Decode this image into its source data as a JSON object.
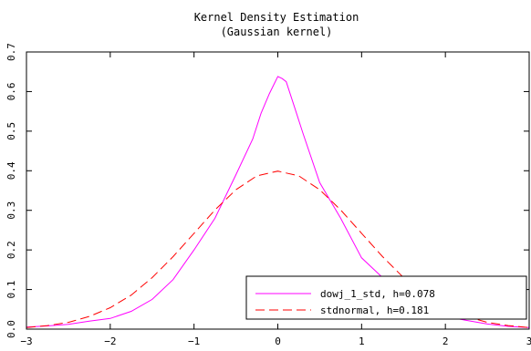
{
  "chart_data": {
    "type": "line",
    "title": "Kernel Density Estimation",
    "subtitle": "(Gaussian kernel)",
    "xlabel": "",
    "ylabel": "",
    "xlim": [
      -3,
      3
    ],
    "ylim": [
      0,
      0.7
    ],
    "xticks": [
      -3,
      -2,
      -1,
      0,
      1,
      2,
      3
    ],
    "yticks": [
      0.0,
      0.1,
      0.2,
      0.3,
      0.4,
      0.5,
      0.6,
      0.7
    ],
    "xtick_labels": [
      "−3",
      "−2",
      "−1",
      "0",
      "1",
      "2",
      "3"
    ],
    "ytick_labels": [
      "0.0",
      "0.1",
      "0.2",
      "0.3",
      "0.4",
      "0.5",
      "0.6",
      "0.7"
    ],
    "grid": false,
    "legend_position": "bottom-right",
    "series": [
      {
        "name": "dowj_1_std, h=0.078",
        "color": "#ff00ff",
        "dash": "solid",
        "x": [
          -3.0,
          -2.75,
          -2.5,
          -2.25,
          -2.0,
          -1.75,
          -1.5,
          -1.25,
          -1.0,
          -0.75,
          -0.5,
          -0.3,
          -0.2,
          -0.1,
          0.0,
          0.05,
          0.1,
          0.2,
          0.3,
          0.5,
          0.75,
          1.0,
          1.25,
          1.5,
          1.75,
          2.0,
          2.25,
          2.5,
          2.75,
          3.0
        ],
        "y": [
          0.005,
          0.008,
          0.012,
          0.02,
          0.027,
          0.045,
          0.075,
          0.125,
          0.2,
          0.28,
          0.39,
          0.48,
          0.545,
          0.595,
          0.638,
          0.633,
          0.625,
          0.56,
          0.495,
          0.37,
          0.28,
          0.18,
          0.13,
          0.08,
          0.055,
          0.032,
          0.022,
          0.013,
          0.007,
          0.004
        ]
      },
      {
        "name": "stdnormal, h=0.181",
        "color": "#ff0000",
        "dash": "dashed",
        "x": [
          -3.0,
          -2.75,
          -2.5,
          -2.25,
          -2.0,
          -1.75,
          -1.5,
          -1.25,
          -1.0,
          -0.75,
          -0.5,
          -0.25,
          0.0,
          0.25,
          0.5,
          0.75,
          1.0,
          1.25,
          1.5,
          1.75,
          2.0,
          2.25,
          2.5,
          2.75,
          3.0
        ],
        "y": [
          0.004,
          0.009,
          0.017,
          0.032,
          0.054,
          0.086,
          0.13,
          0.183,
          0.242,
          0.301,
          0.352,
          0.387,
          0.399,
          0.387,
          0.352,
          0.301,
          0.242,
          0.183,
          0.13,
          0.086,
          0.054,
          0.032,
          0.017,
          0.009,
          0.004
        ]
      }
    ]
  }
}
